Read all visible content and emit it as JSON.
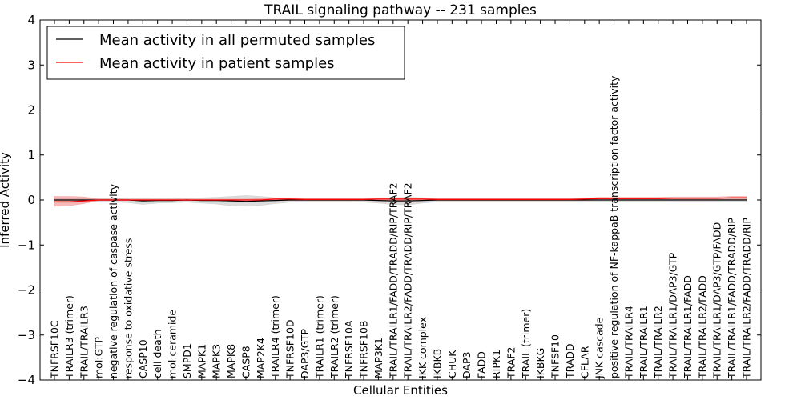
{
  "chart_data": {
    "type": "line",
    "title": "TRAIL signaling pathway -- 231 samples",
    "xlabel": "Cellular Entities",
    "ylabel": "Inferred Activity",
    "ylim": [
      -4,
      4
    ],
    "yticks": [
      "4",
      "3",
      "2",
      "1",
      "0",
      "−1",
      "−2",
      "−3",
      "−4"
    ],
    "ytick_values": [
      4,
      3,
      2,
      1,
      0,
      -1,
      -2,
      -3,
      -4
    ],
    "legend_location": "top-left",
    "categories": [
      "TNFRSF10C",
      "TRAILR3 (trimer)",
      "TRAIL/TRAILR3",
      "mol:GTP",
      "negative regulation of caspase activity",
      "response to oxidative stress",
      "CASP10",
      "cell death",
      "mol:ceramide",
      "SMPD1",
      "MAPK1",
      "MAPK3",
      "MAPK8",
      "CASP8",
      "MAP2K4",
      "TRAILR4 (trimer)",
      "TNFRSF10D",
      "DAP3/GTP",
      "TRAILR1 (trimer)",
      "TRAILR2 (trimer)",
      "TNFRSF10A",
      "TNFRSF10B",
      "MAP3K1",
      "TRAIL/TRAILR1/FADD/TRADD/RIP/TRAF2",
      "TRAIL/TRAILR2/FADD/TRADD/RIP/TRAF2",
      "IKK complex",
      "IKBKB",
      "CHUK",
      "DAP3",
      "FADD",
      "RIPK1",
      "TRAF2",
      "TRAIL (trimer)",
      "IKBKG",
      "TNFSF10",
      "TRADD",
      "CFLAR",
      "JNK cascade",
      "positive regulation of NF-kappaB transcription factor activity",
      "TRAIL/TRAILR4",
      "TRAIL/TRAILR1",
      "TRAIL/TRAILR2",
      "TRAIL/TRAILR1/DAP3/GTP",
      "TRAIL/TRAILR1/FADD",
      "TRAIL/TRAILR2/FADD",
      "TRAIL/TRAILR1/DAP3/GTP/FADD",
      "TRAIL/TRAILR1/FADD/TRADD/RIP",
      "TRAIL/TRAILR2/FADD/TRADD/RIP"
    ],
    "series": [
      {
        "name": "Mean activity in all permuted samples",
        "color": "#000000",
        "values": [
          0.0,
          0.0,
          0.0,
          0.0,
          0.0,
          0.0,
          -0.02,
          -0.01,
          -0.01,
          0.0,
          -0.01,
          -0.01,
          -0.02,
          -0.03,
          -0.02,
          -0.01,
          0.0,
          0.0,
          0.0,
          0.0,
          0.0,
          0.0,
          -0.01,
          -0.02,
          -0.02,
          -0.01,
          0.0,
          0.0,
          0.0,
          0.0,
          0.0,
          0.0,
          0.0,
          0.0,
          0.0,
          0.0,
          0.0,
          0.0,
          0.0,
          0.0,
          0.0,
          0.0,
          0.0,
          0.0,
          0.0,
          0.0,
          0.0,
          0.0
        ],
        "band_color": "#c0c0c0",
        "lower": [
          -0.06,
          -0.06,
          -0.05,
          -0.04,
          -0.05,
          -0.06,
          -0.1,
          -0.07,
          -0.06,
          -0.05,
          -0.07,
          -0.09,
          -0.13,
          -0.14,
          -0.12,
          -0.08,
          -0.05,
          -0.04,
          -0.04,
          -0.04,
          -0.04,
          -0.05,
          -0.07,
          -0.1,
          -0.11,
          -0.07,
          -0.04,
          -0.04,
          -0.04,
          -0.04,
          -0.04,
          -0.04,
          -0.04,
          -0.04,
          -0.04,
          -0.04,
          -0.04,
          -0.05,
          -0.05,
          -0.05,
          -0.05,
          -0.05,
          -0.05,
          -0.05,
          -0.05,
          -0.05,
          -0.05,
          -0.05
        ],
        "upper": [
          0.04,
          0.04,
          0.04,
          0.03,
          0.03,
          0.04,
          0.05,
          0.04,
          0.04,
          0.03,
          0.05,
          0.06,
          0.08,
          0.1,
          0.08,
          0.05,
          0.04,
          0.03,
          0.03,
          0.03,
          0.03,
          0.03,
          0.04,
          0.05,
          0.06,
          0.05,
          0.03,
          0.03,
          0.03,
          0.03,
          0.03,
          0.03,
          0.03,
          0.03,
          0.03,
          0.03,
          0.04,
          0.05,
          0.05,
          0.05,
          0.05,
          0.05,
          0.05,
          0.05,
          0.05,
          0.05,
          0.05,
          0.05
        ]
      },
      {
        "name": "Mean activity in patient samples",
        "color": "#ff0000",
        "values": [
          -0.04,
          -0.04,
          -0.02,
          0.0,
          0.0,
          0.0,
          0.0,
          0.0,
          0.0,
          0.0,
          0.0,
          0.0,
          0.0,
          0.0,
          0.0,
          0.02,
          0.02,
          0.01,
          0.01,
          0.01,
          0.01,
          0.01,
          0.02,
          0.02,
          0.02,
          0.02,
          0.01,
          0.01,
          0.01,
          0.01,
          0.01,
          0.01,
          0.01,
          0.01,
          0.01,
          0.01,
          0.02,
          0.03,
          0.03,
          0.03,
          0.03,
          0.03,
          0.04,
          0.04,
          0.04,
          0.04,
          0.05,
          0.05
        ],
        "band_color": "#f08080",
        "lower": [
          -0.14,
          -0.13,
          -0.08,
          -0.01,
          -0.01,
          -0.01,
          -0.01,
          -0.01,
          -0.01,
          -0.01,
          -0.01,
          -0.01,
          -0.01,
          -0.01,
          -0.01,
          -0.01,
          -0.01,
          -0.01,
          -0.01,
          -0.01,
          -0.01,
          -0.01,
          -0.01,
          -0.01,
          -0.01,
          -0.01,
          -0.01,
          -0.01,
          -0.01,
          -0.01,
          -0.01,
          -0.01,
          -0.01,
          -0.01,
          -0.01,
          -0.01,
          -0.01,
          0.0,
          0.0,
          0.0,
          0.0,
          0.0,
          0.0,
          0.0,
          0.0,
          0.0,
          0.01,
          0.01
        ],
        "upper": [
          0.08,
          0.08,
          0.07,
          0.02,
          0.02,
          0.02,
          0.02,
          0.02,
          0.02,
          0.02,
          0.02,
          0.02,
          0.02,
          0.02,
          0.03,
          0.04,
          0.04,
          0.03,
          0.03,
          0.03,
          0.03,
          0.03,
          0.04,
          0.05,
          0.05,
          0.04,
          0.03,
          0.03,
          0.03,
          0.03,
          0.03,
          0.03,
          0.03,
          0.03,
          0.03,
          0.03,
          0.04,
          0.06,
          0.06,
          0.06,
          0.06,
          0.06,
          0.07,
          0.07,
          0.07,
          0.07,
          0.08,
          0.08
        ]
      }
    ]
  }
}
